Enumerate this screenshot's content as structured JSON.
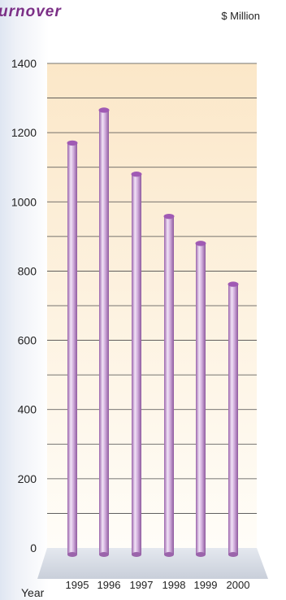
{
  "chart_data": {
    "type": "bar",
    "title": "urnover",
    "unit_label": "$ Million",
    "xlabel": "Year",
    "ylabel": "",
    "categories": [
      "1995",
      "1996",
      "1997",
      "1998",
      "1999",
      "2000"
    ],
    "values": [
      1170,
      1265,
      1080,
      958,
      880,
      762
    ],
    "ylim": [
      0,
      1400
    ],
    "yticks": [
      0,
      200,
      400,
      600,
      800,
      1000,
      1200,
      1400
    ],
    "grid": true,
    "colors": {
      "bar": "#c9a3d6",
      "bar_dark": "#9b64ab",
      "bar_cap": "#a05ab4",
      "title": "#7b2f86",
      "plot_top": "#fbe7c8"
    }
  }
}
